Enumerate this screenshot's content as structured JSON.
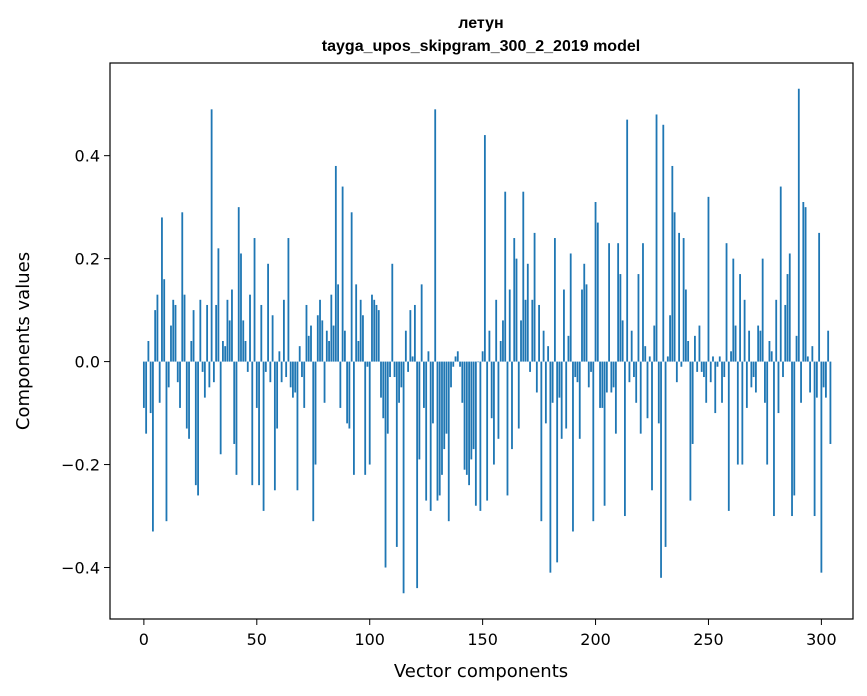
{
  "chart_data": {
    "type": "bar",
    "title_line1": "летун",
    "title_line2": "tayga_upos_skipgram_300_2_2019 model",
    "xlabel": "Vector components",
    "ylabel": "Components values",
    "xlim": [
      -15,
      314
    ],
    "ylim": [
      -0.5,
      0.58
    ],
    "xticks": [
      0,
      50,
      100,
      150,
      200,
      250,
      300
    ],
    "xtick_labels": [
      "0",
      "50",
      "100",
      "150",
      "200",
      "250",
      "300"
    ],
    "yticks": [
      -0.4,
      -0.2,
      0.0,
      0.2,
      0.4
    ],
    "ytick_labels": [
      "−0.4",
      "−0.2",
      "0.0",
      "0.2",
      "0.4"
    ],
    "bar_color": "#1f77b4",
    "values": [
      -0.09,
      -0.14,
      0.04,
      -0.1,
      -0.33,
      0.1,
      0.13,
      -0.08,
      0.28,
      0.16,
      -0.31,
      -0.05,
      0.07,
      0.12,
      0.11,
      -0.04,
      -0.09,
      0.29,
      0.13,
      -0.13,
      -0.15,
      0.04,
      0.1,
      -0.24,
      -0.26,
      0.12,
      -0.02,
      -0.07,
      0.11,
      -0.05,
      0.49,
      -0.04,
      0.11,
      0.22,
      -0.18,
      0.04,
      0.03,
      0.12,
      0.08,
      0.14,
      -0.16,
      -0.22,
      0.3,
      0.21,
      0.08,
      0.04,
      -0.02,
      0.13,
      -0.24,
      0.24,
      -0.09,
      -0.24,
      0.11,
      -0.29,
      -0.02,
      0.19,
      -0.04,
      0.09,
      -0.25,
      -0.13,
      0.02,
      -0.04,
      0.12,
      -0.03,
      0.24,
      -0.05,
      -0.07,
      -0.06,
      -0.25,
      0.03,
      -0.03,
      -0.09,
      0.11,
      0.05,
      0.07,
      -0.31,
      -0.2,
      0.09,
      0.12,
      0.08,
      -0.08,
      0.06,
      0.04,
      0.13,
      0.07,
      0.38,
      0.15,
      -0.09,
      0.34,
      0.06,
      -0.12,
      -0.13,
      0.29,
      -0.22,
      0.15,
      0.04,
      0.12,
      0.09,
      -0.22,
      -0.01,
      -0.2,
      0.13,
      0.12,
      0.11,
      0.1,
      -0.07,
      -0.11,
      -0.4,
      -0.14,
      -0.03,
      0.19,
      -0.03,
      -0.36,
      -0.08,
      -0.05,
      -0.45,
      0.06,
      -0.02,
      0.1,
      0.01,
      0.11,
      -0.44,
      -0.19,
      0.15,
      -0.09,
      -0.27,
      0.02,
      -0.29,
      -0.12,
      0.49,
      -0.27,
      -0.26,
      -0.22,
      -0.17,
      -0.14,
      -0.31,
      -0.05,
      -0.01,
      0.01,
      0.02,
      -0.01,
      -0.08,
      -0.21,
      -0.22,
      -0.24,
      -0.19,
      -0.17,
      -0.28,
      0.0,
      -0.29,
      0.02,
      0.44,
      -0.27,
      0.06,
      -0.11,
      -0.2,
      0.12,
      -0.15,
      0.04,
      0.08,
      0.33,
      -0.26,
      0.14,
      -0.17,
      0.24,
      0.2,
      -0.13,
      0.08,
      0.33,
      0.12,
      0.19,
      -0.02,
      0.12,
      0.25,
      -0.06,
      0.11,
      -0.31,
      0.06,
      -0.12,
      0.03,
      -0.41,
      -0.08,
      0.24,
      -0.39,
      -0.07,
      -0.15,
      0.14,
      -0.13,
      0.05,
      0.21,
      -0.33,
      -0.03,
      -0.04,
      -0.15,
      0.14,
      0.19,
      0.15,
      -0.05,
      -0.02,
      -0.31,
      0.31,
      0.27,
      -0.09,
      -0.09,
      -0.28,
      -0.06,
      0.23,
      -0.06,
      -0.05,
      -0.14,
      0.23,
      0.17,
      0.08,
      -0.3,
      0.47,
      -0.04,
      0.06,
      -0.03,
      -0.08,
      0.17,
      -0.14,
      0.23,
      0.03,
      -0.11,
      0.01,
      -0.25,
      0.07,
      0.48,
      -0.12,
      -0.42,
      0.46,
      -0.36,
      0.01,
      0.09,
      0.38,
      0.29,
      -0.04,
      0.25,
      -0.01,
      0.24,
      0.14,
      0.04,
      -0.27,
      -0.16,
      0.05,
      -0.02,
      0.07,
      -0.02,
      -0.03,
      -0.08,
      0.32,
      -0.04,
      0.01,
      -0.1,
      -0.01,
      0.01,
      -0.08,
      -0.03,
      0.23,
      -0.29,
      0.02,
      0.2,
      0.07,
      -0.2,
      0.17,
      -0.2,
      0.12,
      -0.09,
      0.06,
      -0.05,
      -0.03,
      -0.06,
      0.07,
      0.06,
      0.2,
      -0.08,
      -0.2,
      0.04,
      0.02,
      -0.3,
      0.12,
      -0.1,
      0.34,
      -0.03,
      0.11,
      0.17,
      0.21,
      -0.3,
      -0.26,
      0.05,
      0.53,
      -0.08,
      0.31,
      0.3,
      0.01,
      -0.06,
      0.03,
      -0.3,
      -0.07,
      0.25,
      -0.41,
      -0.05,
      -0.07,
      0.06,
      -0.16
    ]
  }
}
